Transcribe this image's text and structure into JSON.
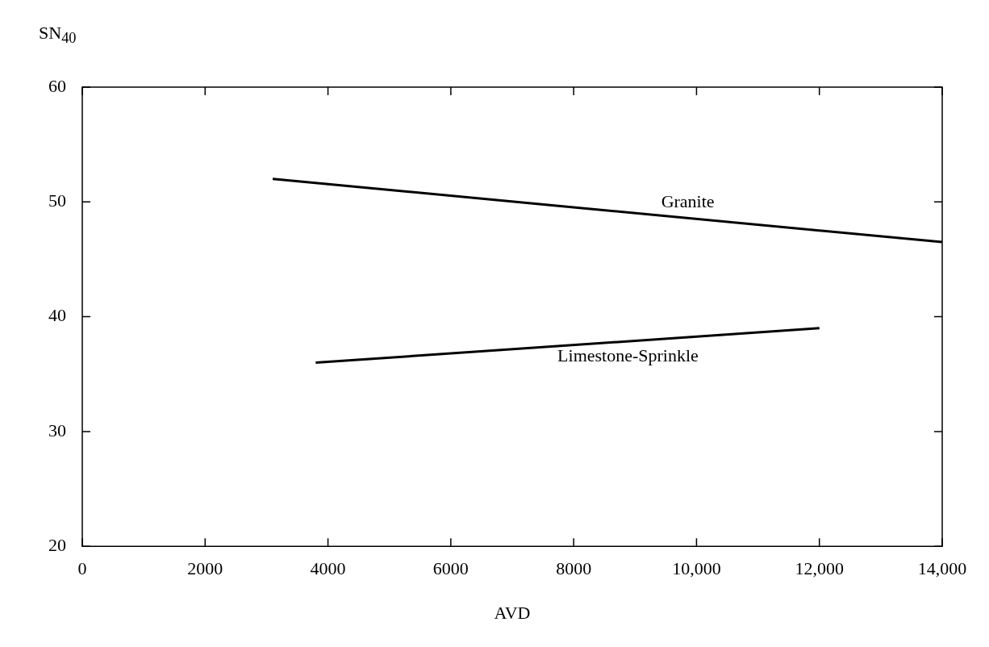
{
  "chart_data": {
    "type": "line",
    "xlabel": "AVD",
    "ylabel": "SN$_{40}$",
    "xlim": [
      0,
      14000
    ],
    "ylim": [
      20,
      60
    ],
    "xticks": [
      0,
      2000,
      4000,
      6000,
      8000,
      {
        "value": 10000,
        "label": "10,000"
      },
      {
        "value": 12000,
        "label": "12,000"
      },
      {
        "value": 14000,
        "label": "14,000"
      }
    ],
    "yticks": [
      20,
      30,
      40,
      50,
      60
    ],
    "series": [
      {
        "name": "Granite",
        "color": "#000000",
        "x": [
          3100,
          14000
        ],
        "values": [
          52,
          46.5
        ]
      },
      {
        "name": "Limestone-Sprinkle",
        "color": "#000000",
        "x": [
          3800,
          12000
        ],
        "values": [
          36,
          39
        ]
      }
    ],
    "grid": false,
    "legend": false,
    "marker": "none",
    "line_style": "solid"
  }
}
